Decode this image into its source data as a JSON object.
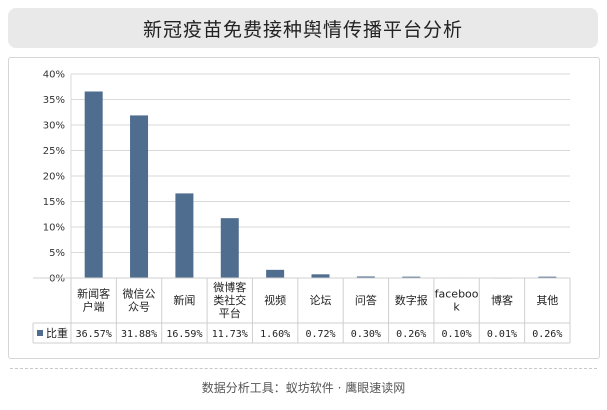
{
  "title": "新冠疫苗免费接种舆情传播平台分析",
  "footer": "数据分析工具：蚁坊软件 · 鹰眼速读网",
  "chart_data": {
    "type": "bar",
    "categories": [
      "新闻客户端",
      "微信公众号",
      "新闻",
      "微博客类社交平台",
      "视频",
      "论坛",
      "问答",
      "数字报",
      "facebook",
      "博客",
      "其他"
    ],
    "category_display": [
      [
        "新闻客",
        "户端"
      ],
      [
        "微信公",
        "众号"
      ],
      [
        "新闻"
      ],
      [
        "微博客",
        "类社交",
        "平台"
      ],
      [
        "视频"
      ],
      [
        "论坛"
      ],
      [
        "问答"
      ],
      [
        "数字报"
      ],
      [
        "faceboo",
        "k"
      ],
      [
        "博客"
      ],
      [
        "其他"
      ]
    ],
    "series": [
      {
        "name": "比重",
        "values": [
          36.57,
          31.88,
          16.59,
          11.73,
          1.6,
          0.72,
          0.3,
          0.26,
          0.1,
          0.01,
          0.26
        ],
        "labels": [
          "36.57%",
          "31.88%",
          "16.59%",
          "11.73%",
          "1.60%",
          "0.72%",
          "0.30%",
          "0.26%",
          "0.10%",
          "0.01%",
          "0.26%"
        ]
      }
    ],
    "yticks": [
      "0%",
      "5%",
      "10%",
      "15%",
      "20%",
      "25%",
      "30%",
      "35%",
      "40%"
    ],
    "ylim": [
      0,
      40
    ],
    "grid": true,
    "bar_color": "#4f6d8f",
    "data_table": true
  }
}
